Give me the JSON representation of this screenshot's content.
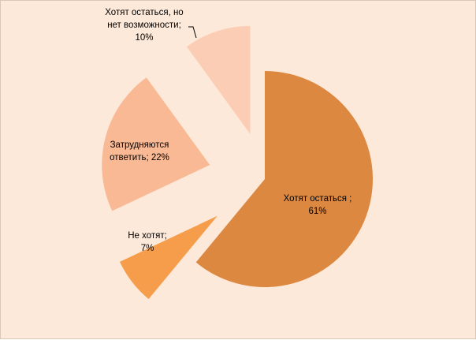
{
  "colors": {
    "background": "#fde9d9",
    "border": "#d9c8b8",
    "leader_line": "#000000"
  },
  "chart_data": {
    "type": "pie",
    "title": "",
    "exploded": true,
    "slices": [
      {
        "id": "stay",
        "label_lines": [
          "Хотят остаться ;",
          "61%"
        ],
        "value": 61,
        "color": "#dc8840"
      },
      {
        "id": "dont-want",
        "label_lines": [
          "Не хотят;",
          "7%"
        ],
        "value": 7,
        "color": "#f69d4c"
      },
      {
        "id": "hard-to-answer",
        "label_lines": [
          "Затрудняются",
          "ответить;  22%"
        ],
        "value": 22,
        "color": "#f9b994"
      },
      {
        "id": "want-no-chance",
        "label_lines": [
          "Хотят остаться, но",
          "нет возможности;",
          "10%"
        ],
        "value": 10,
        "color": "#fccdb5"
      }
    ]
  }
}
